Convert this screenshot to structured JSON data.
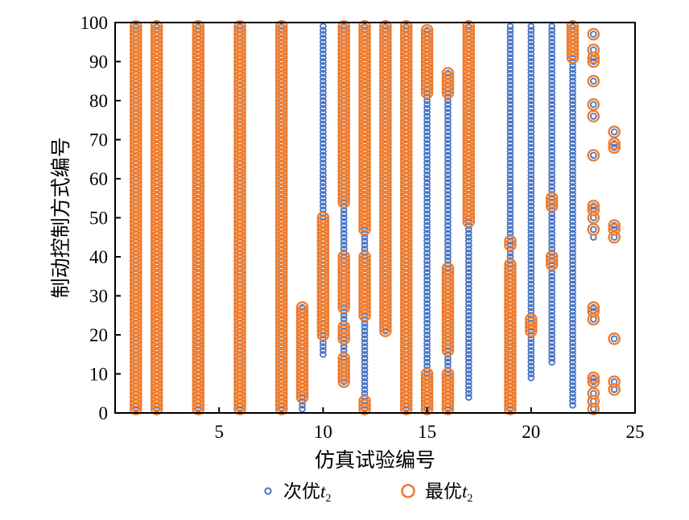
{
  "chart_data": {
    "type": "scatter",
    "xlabel": "仿真试验编号",
    "ylabel": "制动控制方式编号",
    "xlim": [
      0,
      25
    ],
    "ylim": [
      0,
      100
    ],
    "x_ticks": [
      5,
      10,
      15,
      20,
      25
    ],
    "y_ticks": [
      0,
      10,
      20,
      30,
      40,
      50,
      60,
      70,
      80,
      90,
      100
    ],
    "grid": false,
    "legend_position": "bottom",
    "series": [
      {
        "name": "次优",
        "name_italic": "t",
        "name_subscript": "2",
        "marker": "small-circle",
        "color": "#4472C4",
        "columns": [
          {
            "x": 1,
            "ranges": [
              [
                1,
                99
              ]
            ]
          },
          {
            "x": 2,
            "ranges": [
              [
                1,
                99
              ]
            ]
          },
          {
            "x": 4,
            "ranges": [
              [
                1,
                99
              ]
            ]
          },
          {
            "x": 6,
            "ranges": [
              [
                1,
                99
              ]
            ]
          },
          {
            "x": 8,
            "ranges": [
              [
                1,
                99
              ]
            ]
          },
          {
            "x": 9,
            "ranges": [
              [
                1,
                27
              ]
            ]
          },
          {
            "x": 10,
            "ranges": [
              [
                15,
                99
              ]
            ]
          },
          {
            "x": 11,
            "ranges": [
              [
                8,
                99
              ]
            ]
          },
          {
            "x": 12,
            "ranges": [
              [
                1,
                99
              ]
            ],
            "points": [
              21
            ]
          },
          {
            "x": 13,
            "ranges": [
              [
                21,
                99
              ]
            ]
          },
          {
            "x": 14,
            "ranges": [
              [
                1,
                99
              ]
            ]
          },
          {
            "x": 15,
            "ranges": [
              [
                1,
                98
              ]
            ]
          },
          {
            "x": 16,
            "ranges": [
              [
                1,
                87
              ]
            ]
          },
          {
            "x": 17,
            "ranges": [
              [
                4,
                99
              ]
            ]
          },
          {
            "x": 19,
            "ranges": [
              [
                1,
                99
              ]
            ]
          },
          {
            "x": 20,
            "ranges": [
              [
                9,
                99
              ]
            ]
          },
          {
            "x": 21,
            "ranges": [
              [
                13,
                99
              ]
            ]
          },
          {
            "x": 22,
            "ranges": [
              [
                2,
                99
              ]
            ]
          },
          {
            "x": 23,
            "points": [
              1,
              3,
              5,
              8,
              9,
              24,
              26,
              27,
              45,
              47,
              50,
              52,
              53,
              66,
              76,
              79,
              85,
              90,
              91,
              93,
              97
            ]
          },
          {
            "x": 24,
            "points": [
              6,
              8,
              19,
              45,
              47,
              48,
              68,
              69,
              72
            ]
          }
        ]
      },
      {
        "name": "最优",
        "name_italic": "t",
        "name_subscript": "2",
        "marker": "large-open-circle",
        "color": "#ED7D31",
        "columns": [
          {
            "x": 1,
            "ranges": [
              [
                1,
                99
              ]
            ]
          },
          {
            "x": 2,
            "ranges": [
              [
                1,
                99
              ]
            ]
          },
          {
            "x": 4,
            "ranges": [
              [
                1,
                99
              ]
            ]
          },
          {
            "x": 6,
            "ranges": [
              [
                1,
                99
              ]
            ]
          },
          {
            "x": 8,
            "ranges": [
              [
                1,
                99
              ]
            ]
          },
          {
            "x": 9,
            "ranges": [
              [
                4,
                27
              ]
            ]
          },
          {
            "x": 10,
            "ranges": [
              [
                20,
                50
              ]
            ]
          },
          {
            "x": 11,
            "ranges": [
              [
                54,
                99
              ],
              [
                27,
                40
              ],
              [
                19,
                22
              ],
              [
                8,
                14
              ]
            ],
            "points": [
              76,
              79
            ]
          },
          {
            "x": 12,
            "ranges": [
              [
                47,
                99
              ],
              [
                25,
                40
              ],
              [
                1,
                3
              ]
            ]
          },
          {
            "x": 13,
            "ranges": [
              [
                21,
                99
              ]
            ]
          },
          {
            "x": 14,
            "ranges": [
              [
                1,
                99
              ]
            ]
          },
          {
            "x": 15,
            "ranges": [
              [
                82,
                98
              ],
              [
                1,
                10
              ]
            ]
          },
          {
            "x": 16,
            "ranges": [
              [
                82,
                87
              ],
              [
                16,
                37
              ],
              [
                1,
                10
              ]
            ]
          },
          {
            "x": 17,
            "ranges": [
              [
                49,
                99
              ]
            ]
          },
          {
            "x": 19,
            "ranges": [
              [
                1,
                38
              ]
            ],
            "points": [
              43,
              44
            ]
          },
          {
            "x": 20,
            "ranges": [
              [
                21,
                24
              ]
            ]
          },
          {
            "x": 21,
            "ranges": [
              [
                38,
                40
              ],
              [
                53,
                55
              ]
            ]
          },
          {
            "x": 22,
            "ranges": [
              [
                91,
                99
              ]
            ]
          },
          {
            "x": 23,
            "points": [
              1,
              3,
              5,
              8,
              9,
              24,
              26,
              27,
              47,
              50,
              52,
              53,
              66,
              76,
              79,
              85,
              90,
              91,
              93,
              97
            ]
          },
          {
            "x": 24,
            "points": [
              6,
              8,
              19,
              45,
              47,
              48,
              68,
              69,
              72
            ]
          }
        ]
      }
    ]
  }
}
